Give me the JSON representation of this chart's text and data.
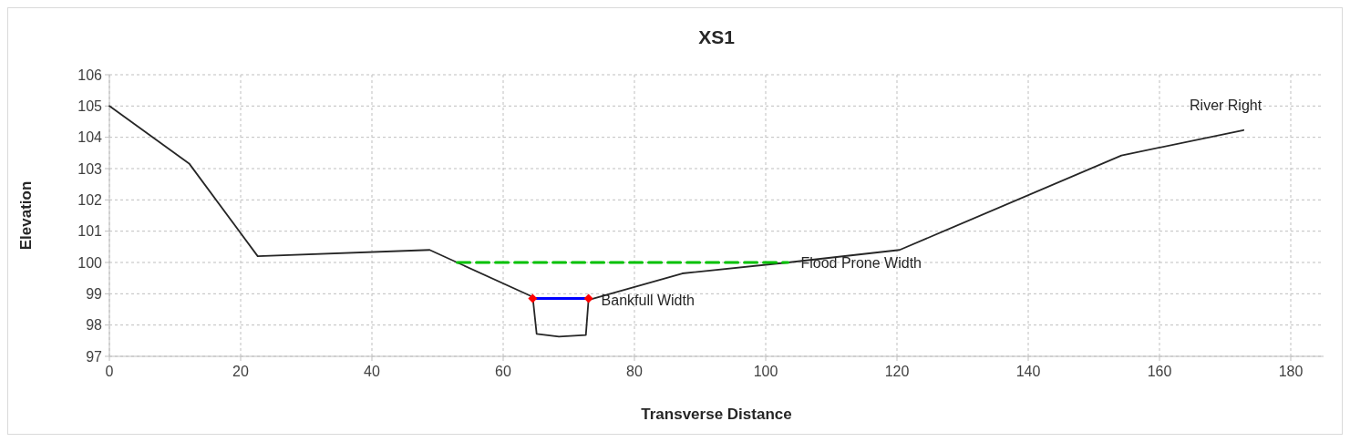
{
  "chart_data": {
    "type": "line",
    "title": "XS1",
    "xlabel": "Transverse Distance",
    "ylabel": "Elevation",
    "xlim": [
      0,
      185
    ],
    "xticks": [
      0,
      20,
      40,
      60,
      80,
      100,
      120,
      140,
      160,
      180
    ],
    "ylim": [
      97,
      106
    ],
    "yticks": [
      97,
      98,
      99,
      100,
      101,
      102,
      103,
      104,
      105,
      106
    ],
    "grid": true,
    "series": [
      {
        "color": "#262626",
        "marker": "none",
        "line_style": "solid",
        "x": [
          0,
          12.2,
          22.6,
          48.8,
          64.5,
          65.1,
          68.5,
          72.6,
          73,
          87.3,
          103.4,
          120.4,
          154.2,
          172.8
        ],
        "values": [
          105,
          103.15,
          100.2,
          100.4,
          98.9,
          97.72,
          97.63,
          97.68,
          98.8,
          99.65,
          100,
          100.4,
          103.42,
          104.23
        ]
      },
      {
        "color": "#0000ff",
        "marker": "diamond",
        "colors": [
          "#ff0000",
          "#ff0000"
        ],
        "line_style": "solid",
        "x": [
          64.5,
          73
        ],
        "values": [
          98.85,
          98.85
        ]
      },
      {
        "color": "#00c000",
        "marker": "none",
        "line_style": "dashed",
        "x": [
          53,
          103.4
        ],
        "values": [
          100,
          100
        ]
      }
    ],
    "annotations": [
      {
        "text": "Flood Prone Width",
        "x": 103.4,
        "y": 100
      },
      {
        "text": "Bankfull Width",
        "x": 73,
        "y": 98.8
      },
      {
        "text": "River Right",
        "x": 172.8,
        "y": 104.23
      }
    ]
  }
}
